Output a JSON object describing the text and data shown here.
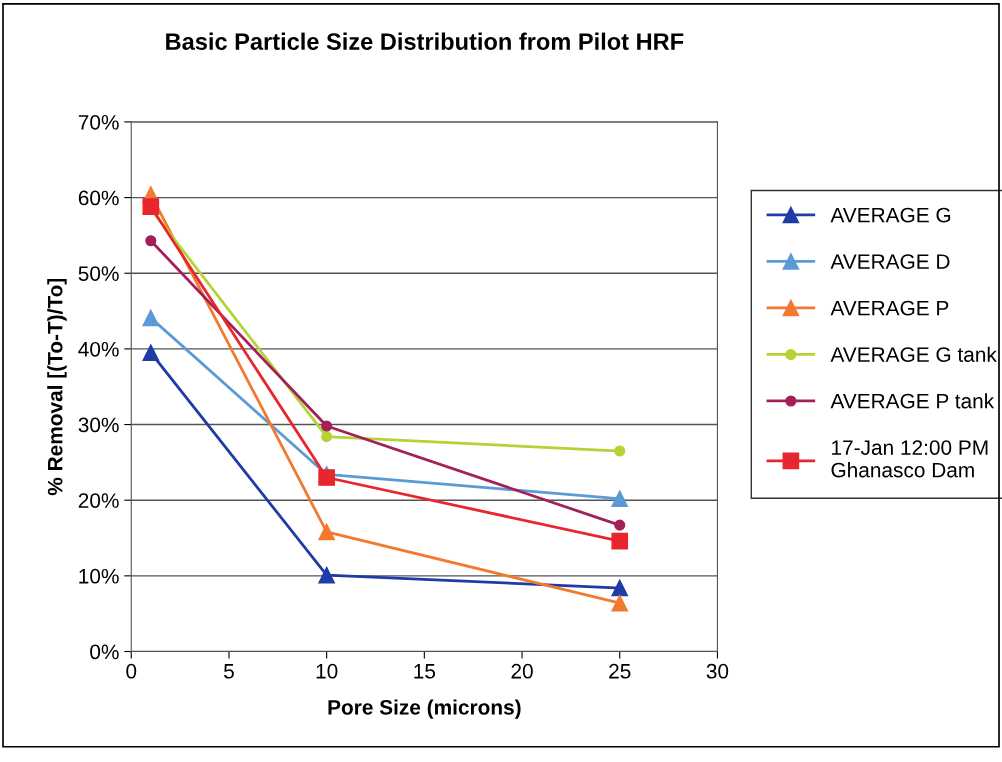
{
  "chart_data": {
    "type": "line",
    "title": "Basic Particle Size Distribution from Pilot HRF",
    "xlabel": "Pore Size (microns)",
    "ylabel": "% Removal [(To-T)/To]",
    "x": [
      1,
      10,
      25
    ],
    "series": [
      {
        "name": "AVERAGE G",
        "color": "#1f3ca6",
        "marker": "triangle",
        "values": [
          39.5,
          10.1,
          8.4
        ]
      },
      {
        "name": "AVERAGE D",
        "color": "#5b9bd5",
        "marker": "triangle",
        "values": [
          44.1,
          23.4,
          20.2
        ]
      },
      {
        "name": "AVERAGE P",
        "color": "#f27a30",
        "marker": "triangle",
        "values": [
          60.4,
          15.8,
          6.4
        ]
      },
      {
        "name": "AVERAGE G tank",
        "color": "#b5d334",
        "marker": "circle",
        "values": [
          58.5,
          28.4,
          26.5
        ]
      },
      {
        "name": "AVERAGE P tank",
        "color": "#a3205a",
        "marker": "circle",
        "values": [
          54.3,
          29.8,
          16.7
        ]
      },
      {
        "name": "17-Jan 12:00 PM\nGhanasco Dam",
        "color": "#e8262e",
        "marker": "square",
        "values": [
          58.8,
          23.0,
          14.6
        ]
      }
    ],
    "xlim": [
      0,
      30
    ],
    "xticks": [
      0,
      5,
      10,
      15,
      20,
      25,
      30
    ],
    "ylim": [
      0,
      70
    ],
    "yticks": [
      {
        "value": 0,
        "label": "0%"
      },
      {
        "value": 10,
        "label": "10%"
      },
      {
        "value": 20,
        "label": "20%"
      },
      {
        "value": 30,
        "label": "30%"
      },
      {
        "value": 40,
        "label": "40%"
      },
      {
        "value": 50,
        "label": "50%"
      },
      {
        "value": 60,
        "label": "60%"
      },
      {
        "value": 70,
        "label": "70%"
      }
    ],
    "grid": "y",
    "legend": "right"
  }
}
